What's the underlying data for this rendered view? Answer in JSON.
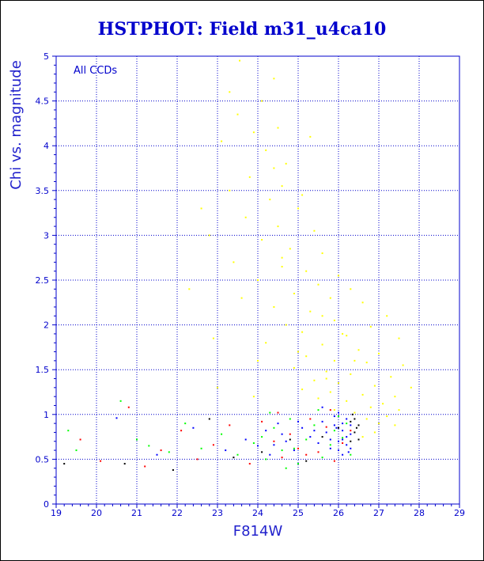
{
  "chart_data": {
    "type": "scatter",
    "title": "HSTPHOT: Field m31_u4ca10",
    "xlabel": "F814W",
    "ylabel": "Chi vs. magnitude",
    "annotation": "All CCDs",
    "xlim": [
      19,
      29
    ],
    "ylim": [
      0,
      5
    ],
    "x_ticks": [
      "19",
      "20",
      "21",
      "22",
      "23",
      "24",
      "25",
      "26",
      "27",
      "28",
      "29"
    ],
    "y_ticks": [
      "0",
      "0.5",
      "1",
      "1.5",
      "2",
      "2.5",
      "3",
      "3.5",
      "4",
      "4.5",
      "5"
    ],
    "grid": true,
    "colors": {
      "axis": "#0000cc",
      "grid": "#0000cc",
      "text": "#0000cc"
    },
    "series": [
      {
        "color": "#ffff00",
        "points": [
          [
            23.55,
            4.95
          ],
          [
            24.4,
            4.75
          ],
          [
            23.3,
            4.6
          ],
          [
            24.1,
            4.5
          ],
          [
            23.5,
            4.35
          ],
          [
            24.5,
            4.2
          ],
          [
            23.1,
            4.05
          ],
          [
            24.2,
            3.95
          ],
          [
            25.3,
            4.1
          ],
          [
            24.7,
            3.8
          ],
          [
            23.8,
            3.65
          ],
          [
            24.6,
            3.55
          ],
          [
            23.3,
            3.5
          ],
          [
            24.3,
            3.4
          ],
          [
            25.0,
            3.3
          ],
          [
            23.7,
            3.2
          ],
          [
            24.5,
            3.1
          ],
          [
            25.4,
            3.05
          ],
          [
            22.8,
            3.0
          ],
          [
            24.1,
            2.95
          ],
          [
            24.8,
            2.85
          ],
          [
            25.6,
            2.8
          ],
          [
            23.4,
            2.7
          ],
          [
            24.6,
            2.65
          ],
          [
            25.2,
            2.6
          ],
          [
            26.0,
            2.55
          ],
          [
            24.0,
            2.5
          ],
          [
            25.5,
            2.45
          ],
          [
            26.3,
            2.4
          ],
          [
            24.9,
            2.35
          ],
          [
            23.6,
            2.3
          ],
          [
            25.8,
            2.3
          ],
          [
            26.6,
            2.25
          ],
          [
            24.4,
            2.2
          ],
          [
            25.3,
            2.15
          ],
          [
            27.2,
            2.1
          ],
          [
            25.9,
            2.05
          ],
          [
            24.7,
            2.0
          ],
          [
            26.8,
            1.98
          ],
          [
            25.1,
            1.92
          ],
          [
            26.2,
            1.88
          ],
          [
            27.5,
            1.85
          ],
          [
            24.2,
            1.8
          ],
          [
            25.6,
            1.78
          ],
          [
            26.5,
            1.72
          ],
          [
            27.0,
            1.68
          ],
          [
            25.2,
            1.65
          ],
          [
            25.9,
            1.6
          ],
          [
            26.7,
            1.58
          ],
          [
            27.6,
            1.55
          ],
          [
            24.9,
            1.52
          ],
          [
            25.7,
            1.48
          ],
          [
            26.3,
            1.45
          ],
          [
            27.3,
            1.42
          ],
          [
            25.4,
            1.38
          ],
          [
            26.0,
            1.35
          ],
          [
            26.9,
            1.32
          ],
          [
            27.8,
            1.3
          ],
          [
            25.1,
            1.28
          ],
          [
            25.8,
            1.25
          ],
          [
            26.6,
            1.22
          ],
          [
            27.4,
            1.2
          ],
          [
            25.5,
            1.18
          ],
          [
            26.2,
            1.15
          ],
          [
            27.1,
            1.12
          ],
          [
            26.8,
            1.08
          ],
          [
            27.5,
            1.05
          ],
          [
            25.9,
            1.05
          ],
          [
            26.4,
            1.02
          ],
          [
            27.2,
            0.98
          ],
          [
            26.7,
            0.95
          ],
          [
            27.0,
            0.9
          ],
          [
            27.4,
            0.88
          ],
          [
            26.9,
            0.8
          ],
          [
            26.6,
            0.75
          ],
          [
            22.3,
            2.4
          ],
          [
            22.9,
            1.85
          ],
          [
            23.0,
            1.3
          ],
          [
            22.6,
            3.3
          ],
          [
            24.0,
            1.6
          ],
          [
            23.9,
            1.2
          ],
          [
            25.0,
            1.7
          ],
          [
            25.6,
            2.1
          ],
          [
            26.1,
            1.9
          ],
          [
            24.6,
            2.75
          ],
          [
            25.1,
            3.45
          ],
          [
            24.4,
            3.75
          ],
          [
            23.9,
            4.15
          ],
          [
            25.7,
            1.4
          ],
          [
            26.4,
            1.6
          ]
        ]
      },
      {
        "color": "#00ff00",
        "points": [
          [
            19.3,
            0.82
          ],
          [
            19.5,
            0.6
          ],
          [
            20.6,
            1.15
          ],
          [
            21.0,
            0.72
          ],
          [
            21.3,
            0.65
          ],
          [
            21.8,
            0.58
          ],
          [
            22.2,
            0.9
          ],
          [
            22.6,
            0.62
          ],
          [
            23.1,
            0.78
          ],
          [
            23.5,
            0.55
          ],
          [
            23.9,
            0.68
          ],
          [
            24.2,
            0.5
          ],
          [
            24.4,
            0.85
          ],
          [
            24.6,
            0.6
          ],
          [
            24.8,
            0.95
          ],
          [
            25.0,
            0.45
          ],
          [
            25.2,
            0.72
          ],
          [
            25.4,
            0.88
          ],
          [
            25.6,
            0.52
          ],
          [
            25.8,
            0.66
          ],
          [
            26.0,
            0.98
          ],
          [
            26.1,
            0.74
          ],
          [
            26.3,
            0.55
          ],
          [
            24.3,
            1.02
          ],
          [
            24.9,
            0.62
          ],
          [
            25.5,
            1.05
          ],
          [
            25.9,
            0.82
          ],
          [
            26.2,
            0.9
          ],
          [
            24.1,
            0.75
          ],
          [
            24.7,
            0.4
          ]
        ]
      },
      {
        "color": "#ff0000",
        "points": [
          [
            19.6,
            0.72
          ],
          [
            20.1,
            0.48
          ],
          [
            20.8,
            1.08
          ],
          [
            21.2,
            0.42
          ],
          [
            21.6,
            0.6
          ],
          [
            22.1,
            0.82
          ],
          [
            22.5,
            0.5
          ],
          [
            22.9,
            0.66
          ],
          [
            23.3,
            0.88
          ],
          [
            23.8,
            0.45
          ],
          [
            24.1,
            0.92
          ],
          [
            24.4,
            0.7
          ],
          [
            24.6,
            0.52
          ],
          [
            24.8,
            0.78
          ],
          [
            25.0,
            0.62
          ],
          [
            25.3,
            0.95
          ],
          [
            25.5,
            0.58
          ],
          [
            25.7,
            0.86
          ],
          [
            25.9,
            0.48
          ],
          [
            26.1,
            0.68
          ],
          [
            26.3,
            0.82
          ],
          [
            24.5,
            1.02
          ],
          [
            25.2,
            0.55
          ],
          [
            25.8,
            1.05
          ]
        ]
      },
      {
        "color": "#0000ff",
        "points": [
          [
            20.5,
            0.96
          ],
          [
            21.5,
            0.55
          ],
          [
            22.4,
            0.85
          ],
          [
            23.2,
            0.6
          ],
          [
            23.7,
            0.72
          ],
          [
            24.0,
            0.65
          ],
          [
            24.2,
            0.82
          ],
          [
            24.3,
            0.55
          ],
          [
            24.5,
            0.9
          ],
          [
            24.7,
            0.7
          ],
          [
            24.9,
            0.6
          ],
          [
            25.1,
            0.85
          ],
          [
            25.3,
            0.75
          ],
          [
            25.5,
            0.68
          ],
          [
            25.6,
            0.92
          ],
          [
            25.7,
            0.8
          ],
          [
            25.8,
            0.62
          ],
          [
            25.9,
            0.88
          ],
          [
            26.0,
            0.7
          ],
          [
            26.0,
            1.02
          ],
          [
            26.1,
            0.55
          ],
          [
            26.1,
            0.82
          ],
          [
            26.2,
            0.95
          ],
          [
            26.2,
            0.66
          ],
          [
            26.3,
            0.78
          ],
          [
            26.3,
            0.88
          ],
          [
            25.9,
            0.98
          ],
          [
            26.1,
            0.9
          ],
          [
            25.6,
            1.08
          ],
          [
            26.0,
            0.6
          ],
          [
            25.8,
            0.72
          ],
          [
            26.2,
            0.75
          ],
          [
            25.4,
            0.82
          ],
          [
            25.0,
            0.92
          ],
          [
            24.6,
            0.78
          ],
          [
            24.4,
            0.66
          ],
          [
            26.3,
            0.62
          ],
          [
            26.1,
            0.72
          ],
          [
            25.95,
            0.85
          ],
          [
            26.25,
            0.58
          ]
        ]
      },
      {
        "color": "#000000",
        "points": [
          [
            19.2,
            0.45
          ],
          [
            20.7,
            0.45
          ],
          [
            21.9,
            0.38
          ],
          [
            22.8,
            0.95
          ],
          [
            23.4,
            0.52
          ],
          [
            24.1,
            0.58
          ],
          [
            24.8,
            0.72
          ],
          [
            25.2,
            0.48
          ],
          [
            25.6,
            0.75
          ],
          [
            26.0,
            0.85
          ],
          [
            26.3,
            0.92
          ],
          [
            26.4,
            0.8
          ],
          [
            26.5,
            0.88
          ],
          [
            26.4,
            0.95
          ],
          [
            26.5,
            0.72
          ],
          [
            26.35,
            1.0
          ],
          [
            26.45,
            0.85
          ],
          [
            26.3,
            0.7
          ]
        ]
      }
    ]
  }
}
